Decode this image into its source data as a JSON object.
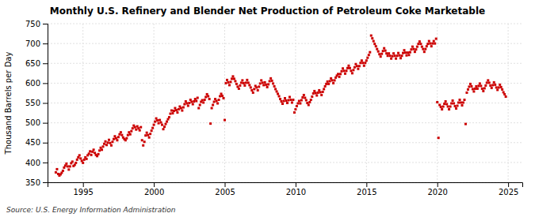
{
  "chart_data": {
    "type": "scatter",
    "title": "Monthly U.S. Refinery and Blender Net Production of Petroleum Coke Marketable",
    "ylabel": "Thousand Barrels per Day",
    "annotations": [
      "Source: U.S. Energy Information Administration"
    ],
    "color": "#CC0000",
    "marker": "square",
    "grid": true,
    "xlim": [
      1992.5,
      2026.0
    ],
    "xticks": [
      1995,
      2000,
      2005,
      2010,
      2015,
      2020,
      2025
    ],
    "ylim": [
      350,
      750
    ],
    "yticks": [
      350,
      400,
      450,
      500,
      550,
      600,
      650,
      700,
      750
    ],
    "x": [
      1993.083,
      1993.167,
      1993.25,
      1993.333,
      1993.417,
      1993.5,
      1993.583,
      1993.667,
      1993.75,
      1993.833,
      1993.917,
      1994.0,
      1994.083,
      1994.167,
      1994.25,
      1994.333,
      1994.417,
      1994.5,
      1994.583,
      1994.667,
      1994.75,
      1994.833,
      1994.917,
      1995.0,
      1995.083,
      1995.167,
      1995.25,
      1995.333,
      1995.417,
      1995.5,
      1995.583,
      1995.667,
      1995.75,
      1995.833,
      1995.917,
      1996.0,
      1996.083,
      1996.167,
      1996.25,
      1996.333,
      1996.417,
      1996.5,
      1996.583,
      1996.667,
      1996.75,
      1996.833,
      1996.917,
      1997.0,
      1997.083,
      1997.167,
      1997.25,
      1997.333,
      1997.417,
      1997.5,
      1997.583,
      1997.667,
      1997.75,
      1997.833,
      1997.917,
      1998.0,
      1998.083,
      1998.167,
      1998.25,
      1998.333,
      1998.417,
      1998.5,
      1998.583,
      1998.667,
      1998.75,
      1998.833,
      1998.917,
      1999.0,
      1999.083,
      1999.167,
      1999.25,
      1999.333,
      1999.417,
      1999.5,
      1999.583,
      1999.667,
      1999.75,
      1999.833,
      1999.917,
      2000.0,
      2000.083,
      2000.167,
      2000.25,
      2000.333,
      2000.417,
      2000.5,
      2000.583,
      2000.667,
      2000.75,
      2000.833,
      2000.917,
      2001.0,
      2001.083,
      2001.167,
      2001.25,
      2001.333,
      2001.417,
      2001.5,
      2001.583,
      2001.667,
      2001.75,
      2001.833,
      2001.917,
      2002.0,
      2002.083,
      2002.167,
      2002.25,
      2002.333,
      2002.417,
      2002.5,
      2002.583,
      2002.667,
      2002.75,
      2002.833,
      2002.917,
      2003.0,
      2003.083,
      2003.167,
      2003.25,
      2003.333,
      2003.417,
      2003.5,
      2003.583,
      2003.667,
      2003.75,
      2003.833,
      2003.917,
      2004.0,
      2004.083,
      2004.167,
      2004.25,
      2004.333,
      2004.417,
      2004.5,
      2004.583,
      2004.667,
      2004.75,
      2004.833,
      2004.917,
      2005.0,
      2005.083,
      2005.167,
      2005.25,
      2005.333,
      2005.417,
      2005.5,
      2005.583,
      2005.667,
      2005.75,
      2005.833,
      2005.917,
      2006.0,
      2006.083,
      2006.167,
      2006.25,
      2006.333,
      2006.417,
      2006.5,
      2006.583,
      2006.667,
      2006.75,
      2006.833,
      2006.917,
      2007.0,
      2007.083,
      2007.167,
      2007.25,
      2007.333,
      2007.417,
      2007.5,
      2007.583,
      2007.667,
      2007.75,
      2007.833,
      2007.917,
      2008.0,
      2008.083,
      2008.167,
      2008.25,
      2008.333,
      2008.417,
      2008.5,
      2008.583,
      2008.667,
      2008.75,
      2008.833,
      2008.917,
      2009.0,
      2009.083,
      2009.167,
      2009.25,
      2009.333,
      2009.417,
      2009.5,
      2009.583,
      2009.667,
      2009.75,
      2009.833,
      2009.917,
      2010.0,
      2010.083,
      2010.167,
      2010.25,
      2010.333,
      2010.417,
      2010.5,
      2010.583,
      2010.667,
      2010.75,
      2010.833,
      2010.917,
      2011.0,
      2011.083,
      2011.167,
      2011.25,
      2011.333,
      2011.417,
      2011.5,
      2011.583,
      2011.667,
      2011.75,
      2011.833,
      2011.917,
      2012.0,
      2012.083,
      2012.167,
      2012.25,
      2012.333,
      2012.417,
      2012.5,
      2012.583,
      2012.667,
      2012.75,
      2012.833,
      2012.917,
      2013.0,
      2013.083,
      2013.167,
      2013.25,
      2013.333,
      2013.417,
      2013.5,
      2013.583,
      2013.667,
      2013.75,
      2013.833,
      2013.917,
      2014.0,
      2014.083,
      2014.167,
      2014.25,
      2014.333,
      2014.417,
      2014.5,
      2014.583,
      2014.667,
      2014.75,
      2014.833,
      2014.917,
      2015.0,
      2015.083,
      2015.167,
      2015.25,
      2015.333,
      2015.417,
      2015.5,
      2015.583,
      2015.667,
      2015.75,
      2015.833,
      2015.917,
      2016.0,
      2016.083,
      2016.167,
      2016.25,
      2016.333,
      2016.417,
      2016.5,
      2016.583,
      2016.667,
      2016.75,
      2016.833,
      2016.917,
      2017.0,
      2017.083,
      2017.167,
      2017.25,
      2017.333,
      2017.417,
      2017.5,
      2017.583,
      2017.667,
      2017.75,
      2017.833,
      2017.917,
      2018.0,
      2018.083,
      2018.167,
      2018.25,
      2018.333,
      2018.417,
      2018.5,
      2018.583,
      2018.667,
      2018.75,
      2018.833,
      2018.917,
      2019.0,
      2019.083,
      2019.167,
      2019.25,
      2019.333,
      2019.417,
      2019.5,
      2019.583,
      2019.667,
      2019.75,
      2019.833,
      2019.917,
      2020.0,
      2020.083,
      2020.167,
      2020.25,
      2020.333,
      2020.417,
      2020.5,
      2020.583,
      2020.667,
      2020.75,
      2020.833,
      2020.917,
      2021.0,
      2021.083,
      2021.167,
      2021.25,
      2021.333,
      2021.417,
      2021.5,
      2021.583,
      2021.667,
      2021.75,
      2021.833,
      2021.917,
      2022.0,
      2022.083,
      2022.167,
      2022.25,
      2022.333,
      2022.417,
      2022.5,
      2022.583,
      2022.667,
      2022.75,
      2022.833,
      2022.917,
      2023.0,
      2023.083,
      2023.167,
      2023.25,
      2023.333,
      2023.417,
      2023.5,
      2023.583,
      2023.667,
      2023.75,
      2023.833,
      2023.917,
      2024.0,
      2024.083,
      2024.167,
      2024.25,
      2024.333,
      2024.417,
      2024.5,
      2024.583,
      2024.667,
      2024.75,
      2024.833
    ],
    "values": [
      375,
      383,
      371,
      367,
      370,
      374,
      379,
      387,
      392,
      397,
      390,
      382,
      390,
      398,
      402,
      391,
      394,
      399,
      407,
      413,
      418,
      410,
      404,
      399,
      407,
      413,
      409,
      418,
      422,
      428,
      419,
      427,
      432,
      424,
      419,
      416,
      421,
      430,
      437,
      432,
      440,
      447,
      453,
      444,
      450,
      457,
      449,
      443,
      452,
      459,
      466,
      461,
      456,
      464,
      471,
      476,
      469,
      463,
      459,
      456,
      461,
      469,
      476,
      471,
      479,
      486,
      493,
      489,
      483,
      491,
      486,
      481,
      489,
      456,
      443,
      452,
      468,
      475,
      469,
      463,
      472,
      480,
      487,
      495,
      503,
      511,
      506,
      499,
      507,
      501,
      495,
      484,
      490,
      497,
      503,
      509,
      514,
      523,
      531,
      524,
      530,
      537,
      532,
      526,
      534,
      541,
      537,
      531,
      539,
      547,
      554,
      549,
      543,
      550,
      558,
      553,
      547,
      554,
      560,
      555,
      563,
      537,
      545,
      553,
      557,
      551,
      558,
      565,
      572,
      567,
      560,
      498,
      537,
      545,
      553,
      560,
      555,
      549,
      558,
      567,
      573,
      568,
      562,
      507,
      600,
      608,
      602,
      595,
      603,
      611,
      617,
      611,
      605,
      598,
      591,
      586,
      594,
      601,
      607,
      600,
      594,
      601,
      608,
      601,
      595,
      589,
      582,
      576,
      585,
      593,
      589,
      582,
      591,
      599,
      607,
      601,
      595,
      602,
      596,
      590,
      597,
      605,
      612,
      606,
      599,
      592,
      585,
      579,
      573,
      567,
      560,
      554,
      548,
      555,
      562,
      556,
      550,
      557,
      565,
      558,
      551,
      558,
      526,
      534,
      542,
      549,
      555,
      549,
      557,
      564,
      570,
      563,
      557,
      550,
      545,
      552,
      558,
      566,
      574,
      580,
      575,
      569,
      576,
      582,
      577,
      570,
      578,
      585,
      592,
      598,
      604,
      598,
      605,
      612,
      607,
      600,
      607,
      614,
      619,
      623,
      616,
      623,
      630,
      637,
      631,
      624,
      631,
      638,
      644,
      638,
      631,
      625,
      633,
      640,
      648,
      643,
      636,
      643,
      651,
      657,
      651,
      644,
      651,
      657,
      664,
      671,
      678,
      720,
      713,
      706,
      699,
      693,
      686,
      680,
      673,
      667,
      674,
      681,
      688,
      682,
      675,
      669,
      675,
      669,
      662,
      668,
      675,
      669,
      662,
      669,
      676,
      670,
      663,
      669,
      676,
      683,
      677,
      670,
      677,
      671,
      678,
      685,
      692,
      686,
      679,
      685,
      692,
      699,
      705,
      699,
      692,
      686,
      679,
      686,
      693,
      699,
      706,
      700,
      693,
      700,
      706,
      700,
      712,
      552,
      462,
      545,
      540,
      534,
      541,
      548,
      554,
      547,
      541,
      534,
      541,
      549,
      556,
      549,
      542,
      536,
      543,
      551,
      558,
      551,
      544,
      551,
      558,
      497,
      576,
      584,
      591,
      598,
      592,
      585,
      579,
      586,
      592,
      586,
      593,
      599,
      593,
      586,
      580,
      587,
      594,
      601,
      607,
      601,
      594,
      588,
      595,
      602,
      596,
      589,
      583,
      589,
      596,
      590,
      584,
      577,
      572,
      566
    ]
  }
}
